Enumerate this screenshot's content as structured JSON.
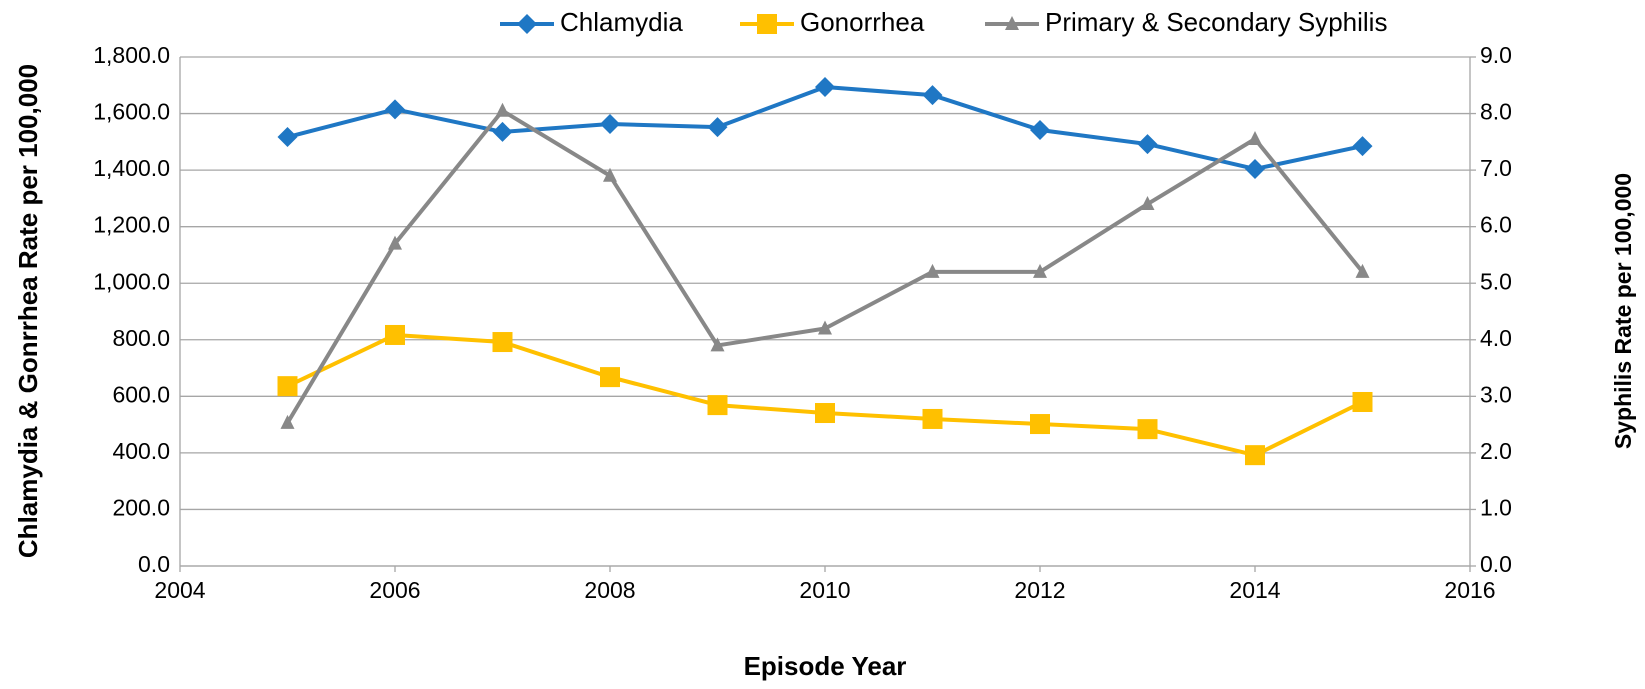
{
  "chart_data": {
    "type": "line",
    "x_label": "Episode Year",
    "y_label": "Chlamydia & Gonrrhea Rate per 100,000",
    "y2_label": "Syphilis Rate per 100,000",
    "x": [
      2005,
      2006,
      2007,
      2008,
      2009,
      2010,
      2011,
      2012,
      2013,
      2014,
      2015
    ],
    "series": [
      {
        "name": "Chlamydia",
        "color": "#1f77c4",
        "marker": "diamond",
        "axis": "y",
        "values": [
          1517,
          1615,
          1535,
          1563,
          1552,
          1694,
          1665,
          1542,
          1492,
          1404,
          1485
        ]
      },
      {
        "name": "Gonorrhea",
        "color": "#ffc000",
        "marker": "square",
        "axis": "y",
        "values": [
          636,
          817,
          792,
          668,
          569,
          541,
          520,
          502,
          484,
          392,
          580
        ]
      },
      {
        "name": "Primary & Secondary Syphilis",
        "color": "#888888",
        "marker": "triangle",
        "axis": "y2",
        "values": [
          2.53,
          5.7,
          8.05,
          6.9,
          3.9,
          4.2,
          5.2,
          5.2,
          6.4,
          7.55,
          5.2
        ]
      }
    ],
    "xlim": [
      2004,
      2016
    ],
    "xticks": [
      2004,
      2006,
      2008,
      2010,
      2012,
      2014,
      2016
    ],
    "ylim": [
      0,
      1800
    ],
    "yticks": [
      {
        "value": 0,
        "label": "0.0"
      },
      {
        "value": 200,
        "label": "200.0"
      },
      {
        "value": 400,
        "label": "400.0"
      },
      {
        "value": 600,
        "label": "600.0"
      },
      {
        "value": 800,
        "label": "800.0"
      },
      {
        "value": 1000,
        "label": "1,000.0"
      },
      {
        "value": 1200,
        "label": "1,200.0"
      },
      {
        "value": 1400,
        "label": "1,400.0"
      },
      {
        "value": 1600,
        "label": "1,600.0"
      },
      {
        "value": 1800,
        "label": "1,800.0"
      }
    ],
    "y2lim": [
      0,
      9
    ],
    "y2ticks": [
      {
        "value": 0,
        "label": "0.0"
      },
      {
        "value": 1,
        "label": "1.0"
      },
      {
        "value": 2,
        "label": "2.0"
      },
      {
        "value": 3,
        "label": "3.0"
      },
      {
        "value": 4,
        "label": "4.0"
      },
      {
        "value": 5,
        "label": "5.0"
      },
      {
        "value": 6,
        "label": "6.0"
      },
      {
        "value": 7,
        "label": "7.0"
      },
      {
        "value": 8,
        "label": "8.0"
      },
      {
        "value": 9,
        "label": "9.0"
      }
    ],
    "grid": true,
    "legend": "top"
  }
}
